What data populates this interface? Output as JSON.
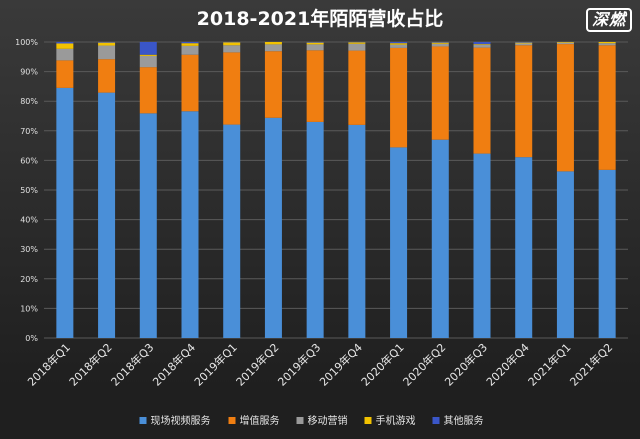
{
  "chart_data": {
    "type": "bar",
    "stacked": true,
    "title": "2018-2021年陌陌营收占比",
    "xlabel": "",
    "ylabel": "",
    "ylim": [
      0,
      100
    ],
    "y_ticks": [
      "0%",
      "10%",
      "20%",
      "30%",
      "40%",
      "50%",
      "60%",
      "70%",
      "80%",
      "90%",
      "100%"
    ],
    "grid": true,
    "legend_position": "bottom",
    "categories": [
      "2018年Q1",
      "2018年Q2",
      "2018年Q3",
      "2018年Q4",
      "2019年Q1",
      "2019年Q2",
      "2019年Q3",
      "2019年Q4",
      "2020年Q1",
      "2020年Q2",
      "2020年Q3",
      "2020年Q4",
      "2021年Q1",
      "2021年Q2"
    ],
    "series": [
      {
        "name": "现场视频服务",
        "color": "#4a8fd8",
        "values": [
          84.5,
          82.9,
          75.9,
          76.6,
          72.1,
          74.4,
          73.0,
          72.0,
          64.4,
          67.0,
          62.3,
          61.1,
          56.3,
          56.8
        ]
      },
      {
        "name": "增值服务",
        "color": "#f07e11",
        "values": [
          9.3,
          11.3,
          15.6,
          19.1,
          24.4,
          22.5,
          24.2,
          25.1,
          33.6,
          31.5,
          35.8,
          37.8,
          43.0,
          42.1
        ]
      },
      {
        "name": "移动营销",
        "color": "#9a9a9a",
        "values": [
          3.9,
          4.6,
          3.8,
          3.0,
          2.4,
          2.3,
          2.0,
          2.3,
          1.1,
          0.9,
          1.0,
          0.6,
          0.5,
          0.7
        ]
      },
      {
        "name": "手机游戏",
        "color": "#f2c200",
        "values": [
          1.8,
          1.0,
          0.4,
          0.9,
          1.0,
          0.8,
          0.6,
          0.5,
          0.5,
          0.4,
          0.2,
          0.3,
          0.2,
          0.4
        ]
      },
      {
        "name": "其他服务",
        "color": "#3a56c8",
        "values": [
          0.5,
          0.2,
          4.3,
          0.4,
          0.1,
          0.0,
          0.2,
          0.1,
          0.4,
          0.2,
          0.7,
          0.2,
          0.0,
          0.0
        ]
      }
    ]
  },
  "watermark": "深燃"
}
